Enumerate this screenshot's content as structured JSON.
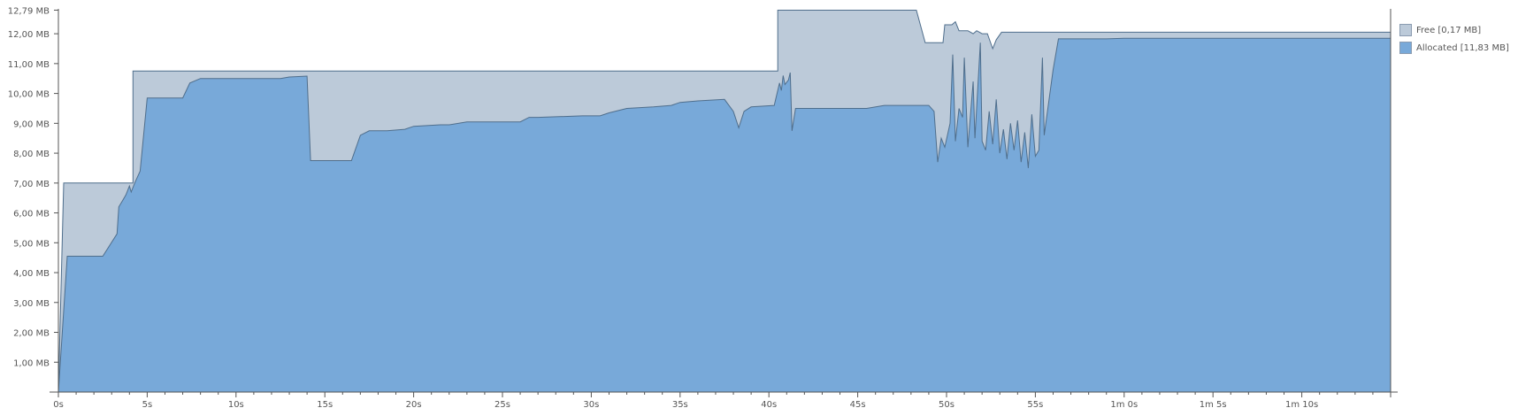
{
  "colors": {
    "free": "#bccad9",
    "allocated": "#78a9d9",
    "line": "#4f6e8c",
    "axis": "#555555"
  },
  "legend": [
    {
      "label": "Free [0,17 MB]",
      "color": "#bccad9"
    },
    {
      "label": "Allocated [11,83 MB]",
      "color": "#78a9d9"
    }
  ],
  "chart_data": {
    "type": "area",
    "title": "",
    "xlabel": "",
    "ylabel": "",
    "xlim": [
      0,
      75
    ],
    "ylim": [
      0,
      12.79
    ],
    "legend_position": "right",
    "grid": false,
    "y_ticks": [
      {
        "value": 1,
        "label": "1,00 MB"
      },
      {
        "value": 2,
        "label": "2,00 MB"
      },
      {
        "value": 3,
        "label": "3,00 MB"
      },
      {
        "value": 4,
        "label": "4,00 MB"
      },
      {
        "value": 5,
        "label": "5,00 MB"
      },
      {
        "value": 6,
        "label": "6,00 MB"
      },
      {
        "value": 7,
        "label": "7,00 MB"
      },
      {
        "value": 8,
        "label": "8,00 MB"
      },
      {
        "value": 9,
        "label": "9,00 MB"
      },
      {
        "value": 10,
        "label": "10,00 MB"
      },
      {
        "value": 11,
        "label": "11,00 MB"
      },
      {
        "value": 12,
        "label": "12,00 MB"
      },
      {
        "value": 12.79,
        "label": "12,79 MB"
      }
    ],
    "x_ticks": [
      {
        "value": 0,
        "label": "0s"
      },
      {
        "value": 5,
        "label": "5s"
      },
      {
        "value": 10,
        "label": "10s"
      },
      {
        "value": 15,
        "label": "15s"
      },
      {
        "value": 20,
        "label": "20s"
      },
      {
        "value": 25,
        "label": "25s"
      },
      {
        "value": 30,
        "label": "30s"
      },
      {
        "value": 35,
        "label": "35s"
      },
      {
        "value": 40,
        "label": "40s"
      },
      {
        "value": 45,
        "label": "45s"
      },
      {
        "value": 50,
        "label": "50s"
      },
      {
        "value": 55,
        "label": "55s"
      },
      {
        "value": 60,
        "label": "1m 0s"
      },
      {
        "value": 65,
        "label": "1m 5s"
      },
      {
        "value": 70,
        "label": "1m 10s"
      }
    ],
    "series": [
      {
        "name": "Free [0,17 MB]",
        "role": "total",
        "points": [
          [
            0,
            0
          ],
          [
            0.3,
            7.0
          ],
          [
            4.2,
            7.0
          ],
          [
            4.2,
            10.75
          ],
          [
            40.5,
            10.75
          ],
          [
            40.5,
            12.79
          ],
          [
            48.3,
            12.79
          ],
          [
            48.8,
            11.7
          ],
          [
            49.8,
            11.7
          ],
          [
            49.9,
            12.3
          ],
          [
            50.3,
            12.3
          ],
          [
            50.5,
            12.4
          ],
          [
            50.7,
            12.1
          ],
          [
            51.2,
            12.1
          ],
          [
            51.5,
            12.0
          ],
          [
            51.7,
            12.1
          ],
          [
            52.0,
            12.0
          ],
          [
            52.3,
            12.0
          ],
          [
            52.6,
            11.5
          ],
          [
            52.8,
            11.8
          ],
          [
            53.1,
            12.05
          ],
          [
            75,
            12.05
          ]
        ]
      },
      {
        "name": "Allocated [11,83 MB]",
        "role": "allocated",
        "points": [
          [
            0,
            0
          ],
          [
            0.5,
            4.55
          ],
          [
            2.5,
            4.55
          ],
          [
            3.3,
            5.3
          ],
          [
            3.4,
            6.2
          ],
          [
            3.6,
            6.4
          ],
          [
            3.8,
            6.6
          ],
          [
            4.0,
            6.9
          ],
          [
            4.1,
            6.7
          ],
          [
            4.3,
            7.0
          ],
          [
            4.6,
            7.4
          ],
          [
            5.0,
            9.85
          ],
          [
            7.0,
            9.85
          ],
          [
            7.4,
            10.35
          ],
          [
            8.0,
            10.5
          ],
          [
            12.5,
            10.5
          ],
          [
            13.0,
            10.55
          ],
          [
            14.0,
            10.58
          ],
          [
            14.2,
            7.75
          ],
          [
            16.5,
            7.75
          ],
          [
            17.0,
            8.6
          ],
          [
            17.5,
            8.75
          ],
          [
            18.5,
            8.75
          ],
          [
            19.5,
            8.8
          ],
          [
            20.0,
            8.9
          ],
          [
            21.5,
            8.95
          ],
          [
            22.0,
            8.95
          ],
          [
            23.0,
            9.05
          ],
          [
            25.0,
            9.05
          ],
          [
            26.0,
            9.05
          ],
          [
            26.5,
            9.2
          ],
          [
            27.0,
            9.2
          ],
          [
            29.5,
            9.25
          ],
          [
            30.5,
            9.25
          ],
          [
            31.0,
            9.35
          ],
          [
            32.0,
            9.5
          ],
          [
            33.5,
            9.55
          ],
          [
            34.5,
            9.6
          ],
          [
            35.0,
            9.7
          ],
          [
            36.0,
            9.75
          ],
          [
            37.5,
            9.8
          ],
          [
            38.0,
            9.4
          ],
          [
            38.3,
            8.85
          ],
          [
            38.6,
            9.4
          ],
          [
            39.0,
            9.55
          ],
          [
            40.3,
            9.6
          ],
          [
            40.6,
            10.35
          ],
          [
            40.7,
            10.1
          ],
          [
            40.8,
            10.6
          ],
          [
            40.9,
            10.3
          ],
          [
            41.1,
            10.45
          ],
          [
            41.2,
            10.7
          ],
          [
            41.3,
            8.75
          ],
          [
            41.5,
            9.5
          ],
          [
            45.5,
            9.5
          ],
          [
            46.5,
            9.6
          ],
          [
            49.0,
            9.6
          ],
          [
            49.3,
            9.4
          ],
          [
            49.5,
            7.7
          ],
          [
            49.7,
            8.5
          ],
          [
            49.9,
            8.2
          ],
          [
            50.2,
            9.0
          ],
          [
            50.35,
            11.3
          ],
          [
            50.5,
            8.4
          ],
          [
            50.7,
            9.5
          ],
          [
            50.9,
            9.2
          ],
          [
            51.0,
            11.2
          ],
          [
            51.2,
            8.2
          ],
          [
            51.5,
            10.4
          ],
          [
            51.6,
            8.5
          ],
          [
            51.9,
            11.7
          ],
          [
            52.0,
            8.4
          ],
          [
            52.2,
            8.1
          ],
          [
            52.4,
            9.4
          ],
          [
            52.6,
            8.3
          ],
          [
            52.8,
            9.8
          ],
          [
            53.0,
            8.0
          ],
          [
            53.2,
            8.8
          ],
          [
            53.4,
            7.8
          ],
          [
            53.6,
            9.0
          ],
          [
            53.8,
            8.1
          ],
          [
            54.0,
            9.1
          ],
          [
            54.2,
            7.7
          ],
          [
            54.4,
            8.7
          ],
          [
            54.6,
            7.5
          ],
          [
            54.8,
            9.3
          ],
          [
            55.0,
            7.9
          ],
          [
            55.2,
            8.1
          ],
          [
            55.4,
            11.2
          ],
          [
            55.5,
            8.6
          ],
          [
            56.0,
            10.8
          ],
          [
            56.3,
            11.83
          ],
          [
            59.0,
            11.83
          ],
          [
            60.0,
            11.85
          ],
          [
            75,
            11.85
          ]
        ]
      }
    ]
  }
}
